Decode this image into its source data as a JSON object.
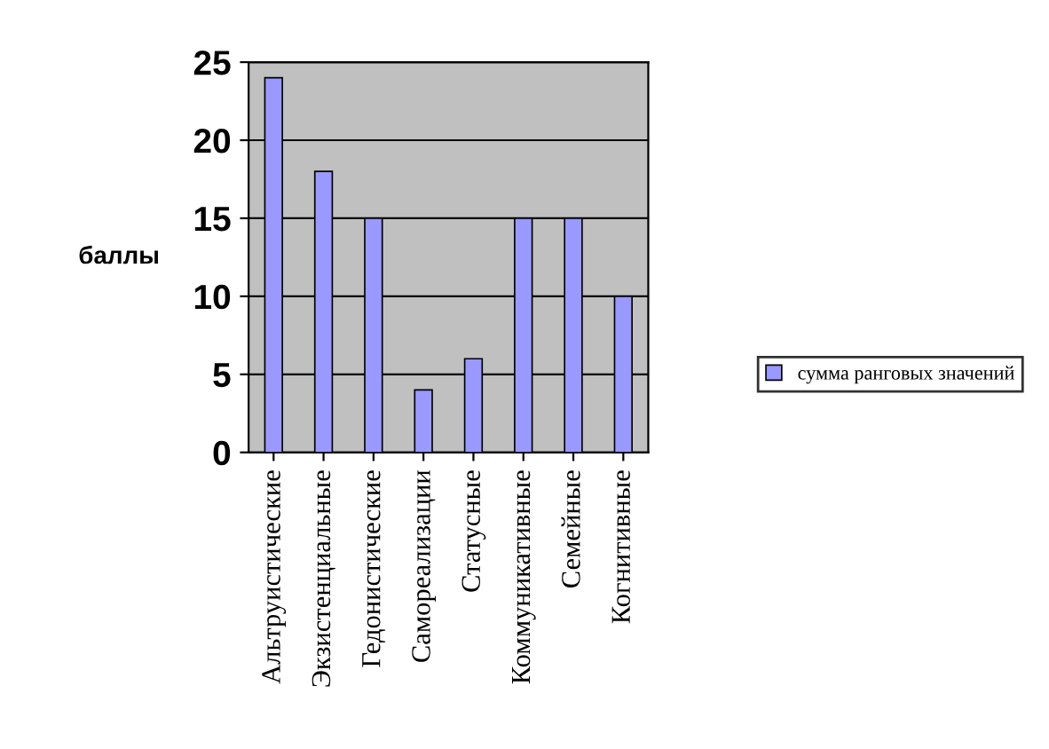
{
  "chart_data": {
    "type": "bar",
    "ylabel": "баллы",
    "categories": [
      "Альтруистические",
      "Экзистенциальные",
      "Гедонистические",
      "Самореализации",
      "Статусные",
      "Коммуникативные",
      "Семейные",
      "Когнитивные"
    ],
    "series": [
      {
        "name": "сумма ранговых значений",
        "color": "#9999ff",
        "values": [
          24,
          18,
          15,
          4,
          6,
          15,
          15,
          10
        ]
      }
    ],
    "ylim": [
      0,
      25
    ],
    "yticks": [
      0,
      5,
      10,
      15,
      20,
      25
    ],
    "grid": "y",
    "legend": "right"
  }
}
